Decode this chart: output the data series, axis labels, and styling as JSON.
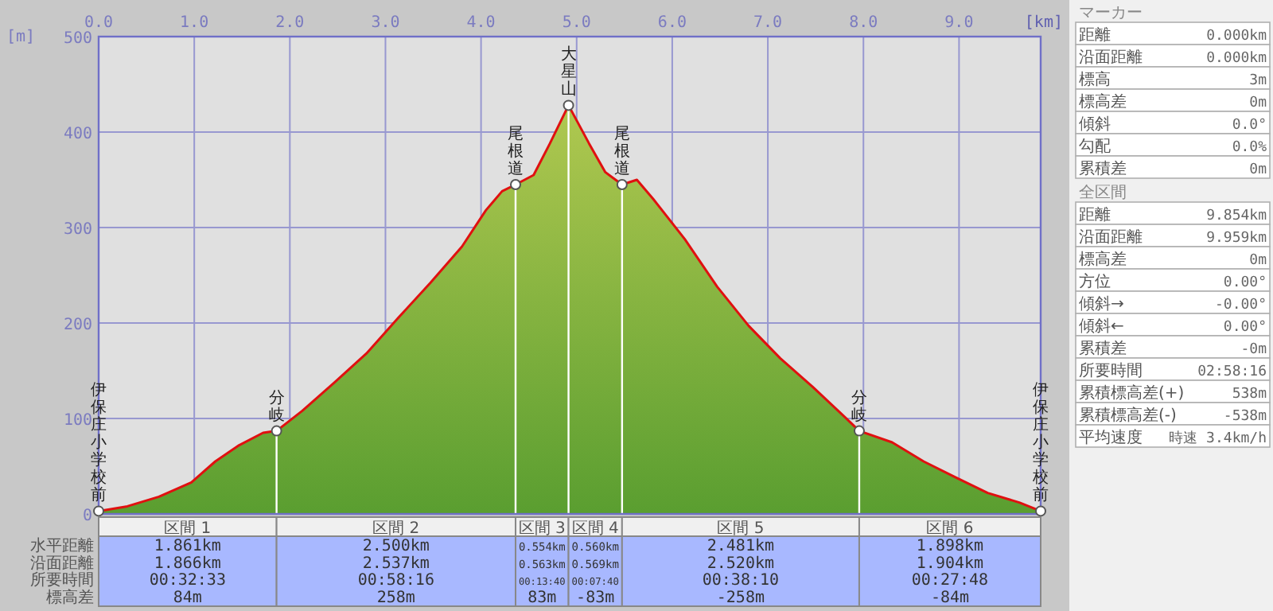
{
  "chart_data": [
    {
      "type": "area",
      "xlabel": "[km]",
      "ylabel": "[m]",
      "xlim": [
        0,
        9.854
      ],
      "ylim": [
        0,
        500
      ],
      "xticks": [
        {
          "value": 0,
          "label": "0.0"
        },
        {
          "value": 1,
          "label": "1.0"
        },
        {
          "value": 2,
          "label": "2.0"
        },
        {
          "value": 3,
          "label": "3.0"
        },
        {
          "value": 4,
          "label": "4.0"
        },
        {
          "value": 5,
          "label": "5.0"
        },
        {
          "value": 6,
          "label": "6.0"
        },
        {
          "value": 7,
          "label": "7.0"
        },
        {
          "value": 8,
          "label": "8.0"
        },
        {
          "value": 9,
          "label": "9.0"
        }
      ],
      "yticks": [
        0,
        100,
        200,
        300,
        400,
        500
      ],
      "grid": true,
      "ref_lines": [
        {
          "axis": "x",
          "value": 1.861,
          "color": "#ffffff"
        },
        {
          "axis": "x",
          "value": 4.361,
          "color": "#ffffff"
        },
        {
          "axis": "x",
          "value": 4.915,
          "color": "#ffffff"
        },
        {
          "axis": "x",
          "value": 5.475,
          "color": "#ffffff"
        },
        {
          "axis": "x",
          "value": 7.956,
          "color": "#ffffff"
        }
      ],
      "x": [
        0,
        0.3,
        0.63,
        0.97,
        1.22,
        1.47,
        1.72,
        1.861,
        2.13,
        2.47,
        2.8,
        3.13,
        3.47,
        3.8,
        4.05,
        4.22,
        4.361,
        4.55,
        4.72,
        4.915,
        5.13,
        5.3,
        5.475,
        5.63,
        5.8,
        6.13,
        6.47,
        6.8,
        7.13,
        7.47,
        7.8,
        7.956,
        8.3,
        8.63,
        8.97,
        9.3,
        9.63,
        9.854
      ],
      "series": [
        {
          "color": "#5a9e30",
          "values": [
            3,
            8,
            18,
            33,
            55,
            72,
            85,
            87,
            108,
            138,
            168,
            205,
            242,
            280,
            318,
            338,
            345,
            355,
            388,
            428,
            388,
            358,
            345,
            350,
            330,
            288,
            238,
            197,
            163,
            133,
            102,
            87,
            75,
            55,
            38,
            22,
            12,
            3
          ]
        }
      ],
      "annotations": [
        {
          "text": "伊保庄小学校前",
          "x": 0,
          "y": 3
        },
        {
          "text": "分岐",
          "x": 1.861,
          "y": 87
        },
        {
          "text": "尾根道",
          "x": 4.361,
          "y": 345
        },
        {
          "text": "大星山",
          "x": 4.915,
          "y": 428
        },
        {
          "text": "尾根道",
          "x": 5.475,
          "y": 345
        },
        {
          "text": "分岐",
          "x": 7.956,
          "y": 87
        },
        {
          "text": "伊保庄小学校前",
          "x": 9.854,
          "y": 3
        }
      ]
    },
    {
      "type": "other",
      "categories": [
        "区間 1",
        "区間 2",
        "区間 3",
        "区間 4",
        "区間 5",
        "区間 6"
      ],
      "y_categories": [
        "水平距離",
        "沿面距離",
        "所要時間",
        "標高差"
      ],
      "cell_labels": [
        [
          "1.861km",
          "2.500km",
          "0.554km",
          "0.560km",
          "2.481km",
          "1.898km"
        ],
        [
          "1.866km",
          "2.537km",
          "0.563km",
          "0.569km",
          "2.520km",
          "1.904km"
        ],
        [
          "00:32:33",
          "00:58:16",
          "00:13:40",
          "00:07:40",
          "00:38:10",
          "00:27:48"
        ],
        [
          "84m",
          "258m",
          "83m",
          "-83m",
          "-258m",
          "-84m"
        ]
      ]
    },
    {
      "type": "other",
      "title": "マーカー",
      "y_categories": [
        "距離",
        "沿面距離",
        "標高",
        "標高差",
        "傾斜",
        "勾配",
        "累積差"
      ],
      "cell_labels": [
        [
          "0.000km"
        ],
        [
          "0.000km"
        ],
        [
          "3m"
        ],
        [
          "0m"
        ],
        [
          "0.0°"
        ],
        [
          "0.0%"
        ],
        [
          "0m"
        ]
      ]
    },
    {
      "type": "other",
      "title": "全区間",
      "y_categories": [
        "距離",
        "沿面距離",
        "標高差",
        "方位",
        "傾斜→",
        "傾斜←",
        "累積差",
        "所要時間",
        "累積標高差(+)",
        "累積標高差(-)",
        "平均速度"
      ],
      "cell_labels": [
        [
          "9.854km"
        ],
        [
          "9.959km"
        ],
        [
          "0m"
        ],
        [
          "0.00°"
        ],
        [
          "-0.00°"
        ],
        [
          "0.00°"
        ],
        [
          "-0m"
        ],
        [
          "02:58:16"
        ],
        [
          "538m"
        ],
        [
          "-538m"
        ],
        [
          "時速 3.4km/h"
        ]
      ]
    }
  ]
}
